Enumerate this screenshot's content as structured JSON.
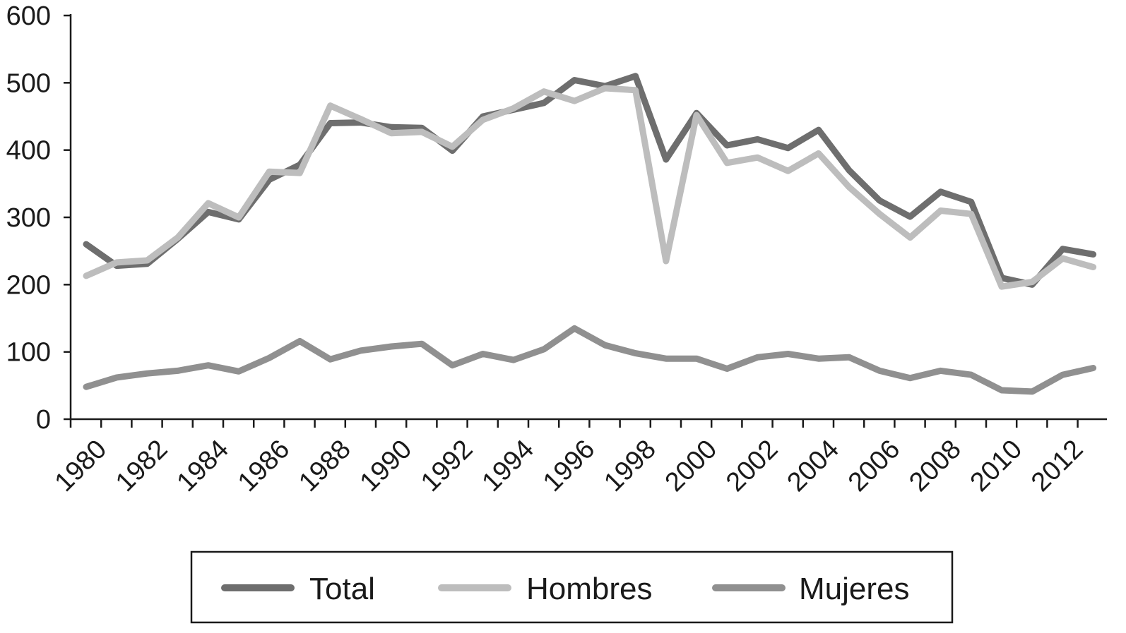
{
  "chart_data": {
    "type": "line",
    "title": "",
    "xlabel": "",
    "ylabel": "",
    "x": [
      1980,
      1981,
      1982,
      1983,
      1984,
      1985,
      1986,
      1987,
      1988,
      1989,
      1990,
      1991,
      1992,
      1993,
      1994,
      1995,
      1996,
      1997,
      1998,
      1999,
      2000,
      2001,
      2002,
      2003,
      2004,
      2005,
      2006,
      2007,
      2008,
      2009,
      2010,
      2011,
      2012,
      2013
    ],
    "x_tick_labels": [
      "1980",
      "1982",
      "1984",
      "1986",
      "1988",
      "1990",
      "1992",
      "1994",
      "1996",
      "1998",
      "2000",
      "2002",
      "2004",
      "2006",
      "2008",
      "2010",
      "2012"
    ],
    "y_tick_labels": [
      "0",
      "100",
      "200",
      "300",
      "400",
      "500",
      "600"
    ],
    "xlim": [
      1980,
      2013
    ],
    "ylim": [
      0,
      600
    ],
    "grid": false,
    "legend_position": "bottom",
    "series": [
      {
        "name": "Total",
        "color": "#6e6e6e",
        "values": [
          260,
          228,
          231,
          268,
          308,
          297,
          356,
          378,
          440,
          441,
          434,
          433,
          399,
          450,
          460,
          470,
          504,
          495,
          510,
          386,
          455,
          407,
          416,
          403,
          430,
          370,
          325,
          301,
          338,
          323,
          210,
          200,
          253,
          245
        ]
      },
      {
        "name": "Hombres",
        "color": "#bdbdbd",
        "values": [
          213,
          233,
          236,
          270,
          321,
          300,
          368,
          366,
          466,
          446,
          425,
          427,
          405,
          445,
          462,
          487,
          473,
          492,
          489,
          235,
          452,
          381,
          389,
          369,
          395,
          345,
          305,
          270,
          310,
          305,
          197,
          204,
          239,
          226
        ]
      },
      {
        "name": "Mujeres",
        "color": "#909090",
        "values": [
          48,
          62,
          68,
          72,
          80,
          71,
          91,
          116,
          89,
          102,
          108,
          112,
          80,
          97,
          88,
          104,
          135,
          110,
          98,
          90,
          90,
          75,
          92,
          97,
          90,
          92,
          72,
          61,
          72,
          66,
          43,
          41,
          66,
          76
        ]
      }
    ]
  }
}
